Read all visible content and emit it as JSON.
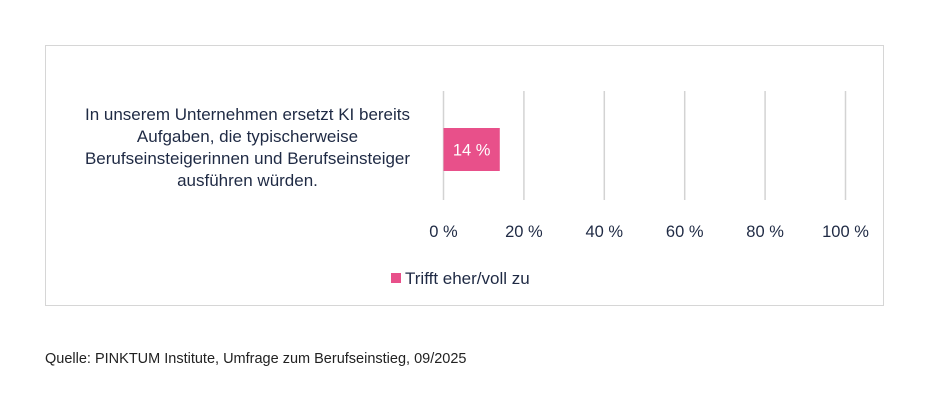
{
  "chart_data": {
    "type": "bar",
    "orientation": "horizontal",
    "categories": [
      "In unserem Unternehmen ersetzt KI bereits Aufgaben, die typischerweise Berufseinsteigerinnen und Berufseinsteiger ausführen würden."
    ],
    "category_lines": [
      "In unserem Unternehmen ersetzt KI bereits",
      "Aufgaben, die typischerweise",
      "Berufseinsteigerinnen und Berufseinsteiger",
      "ausführen würden."
    ],
    "series": [
      {
        "name": "Trifft eher/voll zu",
        "values": [
          14
        ],
        "color": "#e8508a",
        "data_labels": [
          "14 %"
        ]
      }
    ],
    "xlim": [
      0,
      100
    ],
    "xticks": [
      0,
      20,
      40,
      60,
      80,
      100
    ],
    "xtick_labels": [
      "0 %",
      "20 %",
      "40 %",
      "60 %",
      "80 %",
      "100 %"
    ],
    "grid": true,
    "legend_position": "bottom",
    "title": "",
    "xlabel": "",
    "ylabel": ""
  },
  "source_note": "Quelle: PINKTUM Institute, Umfrage zum Berufseinstieg, 09/2025",
  "colors": {
    "bar": "#e8508a",
    "text": "#1f2a44",
    "grid": "#d3d3d3",
    "frame": "#d6d6d6"
  }
}
